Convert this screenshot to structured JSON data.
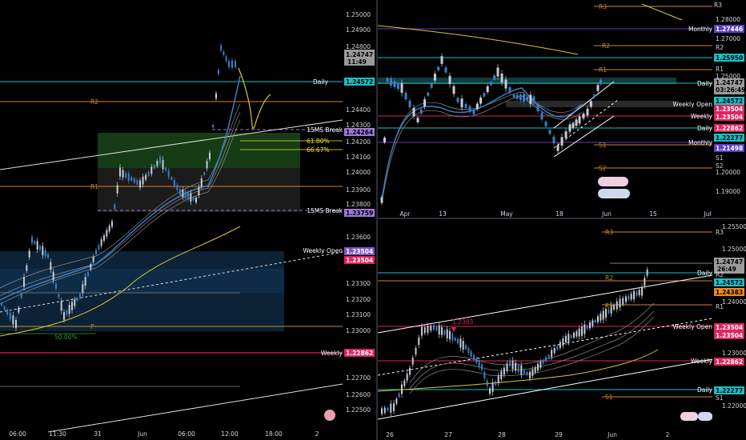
{
  "colors": {
    "bg": "#000000",
    "up": "#c8ccd6",
    "down": "#3a7fc4",
    "daily": "#17c1c7",
    "weekly": "#e0245e",
    "monthly": "#5b3fc4",
    "pivot_r": "#c88a2e",
    "pivot_s": "#c88a2e",
    "ma_yellow": "#d6c832",
    "weekly_open": "#7e57c2",
    "fib_yellow": "#f0e030",
    "green_zone": "#1e4d1e",
    "blue_zone": "#10324f"
  },
  "left_chart": {
    "price_axis": [
      "1.25000",
      "1.24900",
      "1.24800",
      "1.24747",
      "11:49",
      "1.24572",
      "1.24400",
      "1.24300",
      "1.24264",
      "1.24200",
      "1.24100",
      "1.24000",
      "1.23900",
      "1.23800",
      "1.23759",
      "1.23600",
      "1.23504",
      "1.23504",
      "1.23300",
      "1.23200",
      "1.23100",
      "1.23000",
      "1.22862",
      "1.22700",
      "1.22600",
      "1.22500"
    ],
    "time_axis": [
      "06:00",
      "11:30",
      "31",
      "Jun",
      "06:00",
      "12:00",
      "18:00",
      "2"
    ],
    "labels": {
      "daily": "Daily",
      "weekly": "Weekly",
      "weekly_open": "Weekly Open",
      "break_top": "15MS Break",
      "break_bottom": "15MS Break",
      "fib_618": "61.80%",
      "fib_667": "66.67%",
      "fib_50": "50.00%",
      "r2": "R2",
      "r1": "R1",
      "p": "P"
    }
  },
  "top_right_chart": {
    "price_axis": [
      "R3",
      "1.28000",
      "1.27446",
      "1.27000",
      "R2",
      "1.25950",
      "R1",
      "1.25000",
      "1.24747",
      "03:26:49",
      "1.24572",
      "1.23504",
      "1.23504",
      "1.22862",
      "1.22277",
      "1.21498",
      "S1",
      "S2",
      "1.20000",
      "1.19000"
    ],
    "time_axis": [
      "Apr",
      "13",
      "May",
      "18",
      "Jun",
      "15",
      "Jul"
    ],
    "labels": {
      "monthly_top": "Monthly",
      "daily": "Daily",
      "weekly_open": "Weekly Open",
      "weekly": "Weekly",
      "daily_low": "Daily",
      "monthly_low": "Monthly",
      "r3": "R3",
      "r2": "R2",
      "r1": "R1",
      "s1": "S1",
      "s2": "S2"
    },
    "event_badges": [
      "2 3 3",
      "4 5 17 6"
    ]
  },
  "bottom_right_chart": {
    "price_axis": [
      "1.25500",
      "R3",
      "1.25000",
      "1.24747",
      "26:49",
      "1.24572",
      "1.24383",
      "R2",
      "1.24000",
      "R1",
      "1.23504",
      "1.23504",
      "1.23000",
      "1.22862",
      "1.22277",
      "S1",
      "1.22000"
    ],
    "time_axis": [
      "26",
      "27",
      "28",
      "29",
      "Jun",
      "2"
    ],
    "labels": {
      "daily": "Daily",
      "weekly_open": "Weekly Open",
      "weekly": "Weekly",
      "daily_low": "Daily",
      "high_marker": "1.2383",
      "r3": "R3",
      "r2": "R2",
      "r1": "R1",
      "s1": "S1"
    },
    "event_badges": [
      "2 3",
      "4 5 6"
    ]
  }
}
